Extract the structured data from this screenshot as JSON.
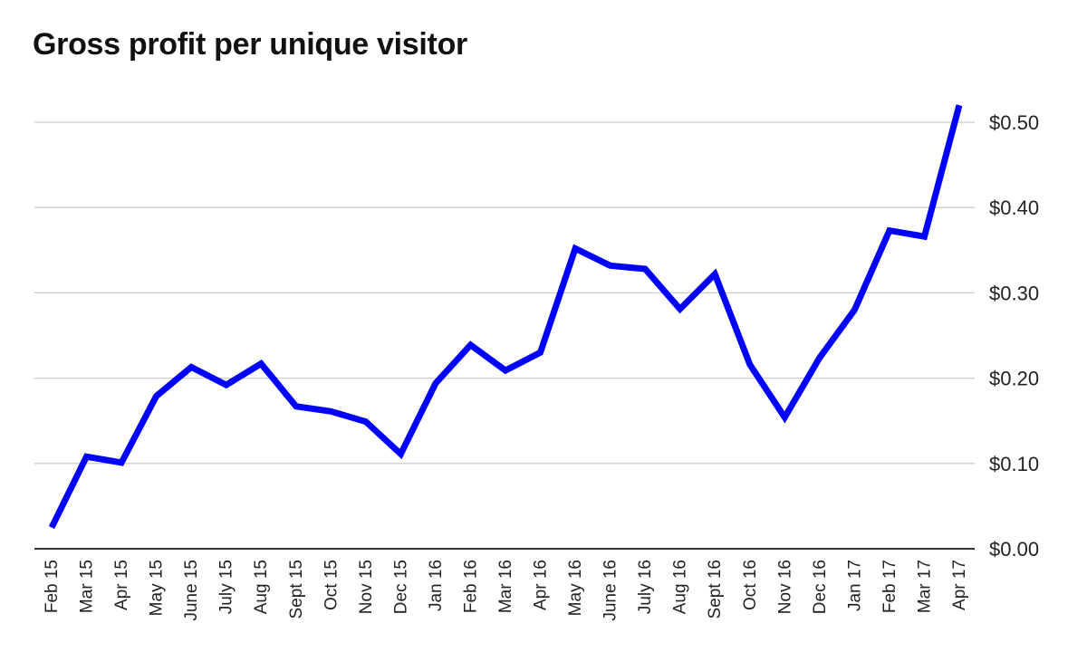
{
  "colors": {
    "line": "#0000ff",
    "grid": "#cccccc",
    "axis": "#333333"
  },
  "chart_data": {
    "type": "line",
    "title": "Gross profit per unique visitor",
    "xlabel": "",
    "ylabel": "",
    "y_axis_side": "right",
    "ylim": [
      0,
      0.5
    ],
    "yticks": [
      0,
      0.1,
      0.2,
      0.3,
      0.4,
      0.5
    ],
    "ytick_labels": [
      "$0.00",
      "$0.10",
      "$0.20",
      "$0.30",
      "$0.40",
      "$0.50"
    ],
    "grid": true,
    "legend": "none",
    "categories": [
      "Feb 15",
      "Mar 15",
      "Apr 15",
      "May 15",
      "June 15",
      "July 15",
      "Aug 15",
      "Sept 15",
      "Oct 15",
      "Nov 15",
      "Dec 15",
      "Jan 16",
      "Feb 16",
      "Mar 16",
      "Apr 16",
      "May 16",
      "June 16",
      "July 16",
      "Aug 16",
      "Sept 16",
      "Oct 16",
      "Nov 16",
      "Dec 16",
      "Jan 17",
      "Feb 17",
      "Mar 17",
      "Apr 17"
    ],
    "series": [
      {
        "values": [
          0.025,
          0.108,
          0.101,
          0.179,
          0.213,
          0.192,
          0.217,
          0.167,
          0.161,
          0.149,
          0.111,
          0.194,
          0.239,
          0.209,
          0.23,
          0.352,
          0.332,
          0.328,
          0.281,
          0.322,
          0.216,
          0.154,
          0.224,
          0.28,
          0.373,
          0.366,
          0.52
        ]
      }
    ]
  }
}
